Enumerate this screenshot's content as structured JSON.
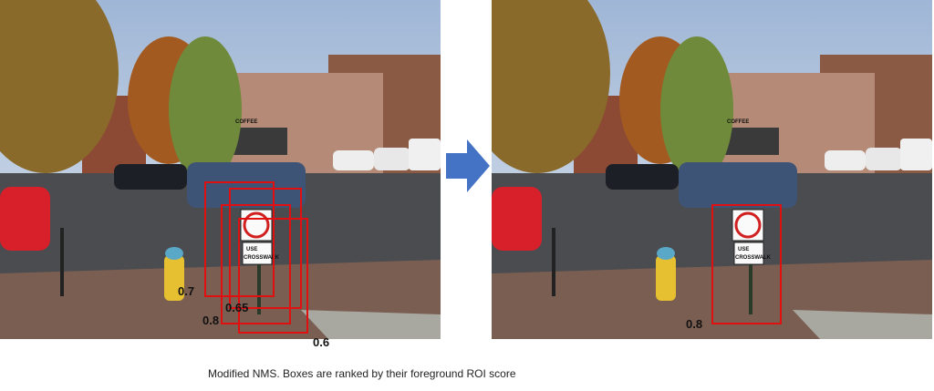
{
  "left_panel": {
    "boxes": [
      {
        "score": 0.7
      },
      {
        "score": 0.65
      },
      {
        "score": 0.8
      },
      {
        "score": 0.6
      }
    ]
  },
  "right_panel": {
    "boxes": [
      {
        "score": 0.8
      }
    ]
  },
  "scene_text": {
    "shop_sign": "COFFEE",
    "sign_top": "USE",
    "sign_bottom": "CROSSWALK"
  },
  "caption": "Modified NMS. Boxes are ranked by their foreground ROI score"
}
